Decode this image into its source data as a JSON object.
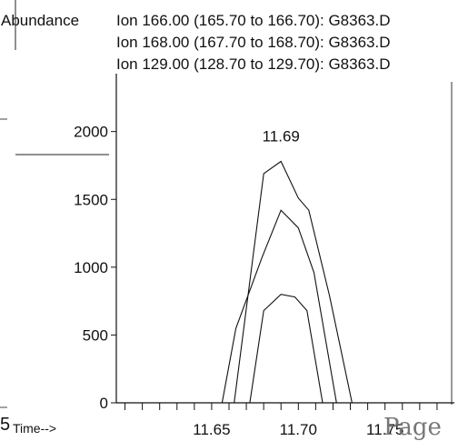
{
  "header": {
    "ylabel": "Abundance",
    "ions": [
      "Ion 166.00 (165.70 to 166.70): G8363.D",
      "Ion 168.00 (167.70 to 168.70): G8363.D",
      "Ion 129.00 (128.70 to 129.70): G8363.D"
    ]
  },
  "footer": {
    "xlabel": "Time-->",
    "left_fragment": "5",
    "page_word": "Page"
  },
  "chart_data": {
    "type": "line",
    "xlabel": "Time-->",
    "ylabel": "Abundance",
    "xlim": [
      11.595,
      11.79
    ],
    "ylim": [
      0,
      2400
    ],
    "xticks": [
      11.65,
      11.7,
      11.75
    ],
    "xtick_labels": [
      "11.65",
      "11.70",
      "11.75"
    ],
    "yticks": [
      0,
      500,
      1000,
      1500,
      2000
    ],
    "ytick_labels": [
      "0",
      "500",
      "1000",
      "1500",
      "2000"
    ],
    "peak_label": {
      "text": "11.69",
      "x": 11.69,
      "y": 1780
    },
    "series": [
      {
        "x": [
          11.663,
          11.68,
          11.69,
          11.7,
          11.706,
          11.718,
          11.731
        ],
        "values": [
          0,
          1690,
          1780,
          1510,
          1420,
          790,
          0
        ]
      },
      {
        "x": [
          11.656,
          11.664,
          11.679,
          11.69,
          11.7,
          11.709,
          11.722
        ],
        "values": [
          0,
          550,
          1070,
          1420,
          1290,
          960,
          0
        ]
      },
      {
        "x": [
          11.672,
          11.68,
          11.69,
          11.698,
          11.705,
          11.714
        ],
        "values": [
          0,
          680,
          800,
          780,
          680,
          0
        ]
      }
    ],
    "grid": false,
    "legend": "top"
  }
}
